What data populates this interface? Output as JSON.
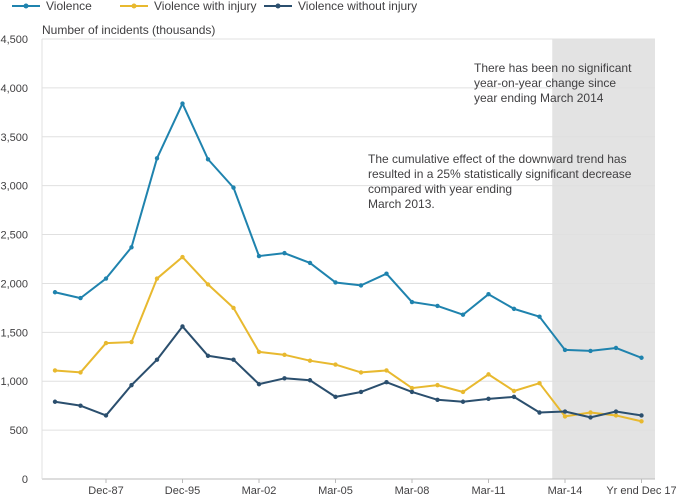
{
  "chart_data": {
    "type": "line",
    "ylabel": "Number of incidents (thousands)",
    "ylim": [
      0,
      4500
    ],
    "yticks": [
      0,
      500,
      1000,
      1500,
      2000,
      2500,
      3000,
      3500,
      4000,
      4500
    ],
    "ytick_labels": [
      "0",
      "500",
      "1,000",
      "1,500",
      "2,000",
      "2,500",
      "3,000",
      "3,500",
      "4,000",
      "4,500"
    ],
    "x_tick_labels": [
      {
        "index": 2,
        "label": "Dec-87"
      },
      {
        "index": 5,
        "label": "Dec-95"
      },
      {
        "index": 8,
        "label": "Mar-02"
      },
      {
        "index": 11,
        "label": "Mar-05"
      },
      {
        "index": 14,
        "label": "Mar-08"
      },
      {
        "index": 17,
        "label": "Mar-11"
      },
      {
        "index": 20,
        "label": "Mar-14"
      },
      {
        "index": 23,
        "label": "Yr end Dec 17"
      }
    ],
    "grid": "horizontal",
    "legend": "top",
    "shaded_from_index": 19.5,
    "series": [
      {
        "name": "Violence",
        "color": "#1f83ae",
        "values": [
          1910,
          1850,
          2050,
          2370,
          3280,
          3840,
          3270,
          2980,
          2280,
          2310,
          2210,
          2010,
          1980,
          2100,
          1810,
          1770,
          1680,
          1890,
          1740,
          1660,
          1320,
          1310,
          1340,
          1240
        ]
      },
      {
        "name": "Violence with injury",
        "color": "#e8b92f",
        "values": [
          1110,
          1090,
          1390,
          1400,
          2050,
          2270,
          1990,
          1750,
          1300,
          1270,
          1210,
          1170,
          1090,
          1110,
          930,
          960,
          890,
          1070,
          900,
          980,
          640,
          680,
          650,
          590
        ]
      },
      {
        "name": "Violence without injury",
        "color": "#2b4f6e",
        "values": [
          790,
          750,
          650,
          960,
          1220,
          1560,
          1260,
          1220,
          970,
          1030,
          1010,
          840,
          890,
          990,
          890,
          810,
          790,
          820,
          840,
          680,
          690,
          630,
          690,
          650
        ]
      }
    ],
    "annotations": [
      {
        "lines": [
          "There has been no significant",
          "year-on-year change since",
          "year ending March 2014"
        ]
      },
      {
        "lines": [
          "The cumulative effect of the downward trend has",
          "resulted in a 25% statistically significant decrease",
          "compared with year ending",
          "March 2013."
        ]
      }
    ]
  }
}
